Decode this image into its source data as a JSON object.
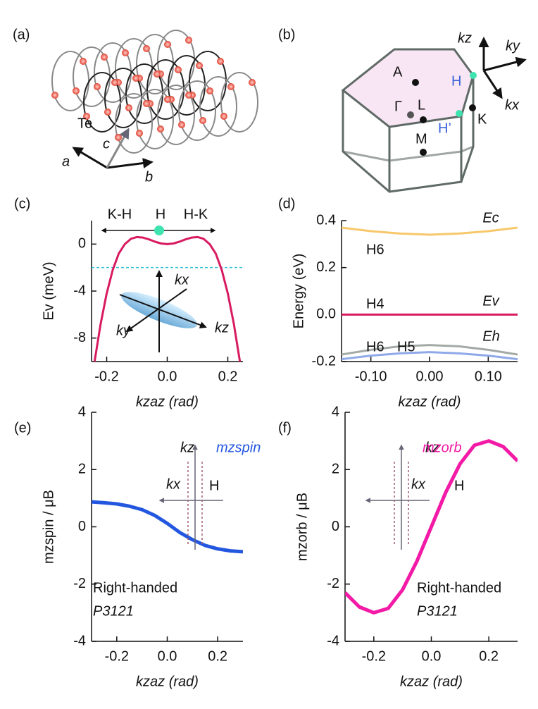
{
  "diagrams": {
    "a": {
      "panel_label": "(a)",
      "atom": "Te",
      "axes": [
        "a",
        "b",
        "c"
      ]
    },
    "b": {
      "panel_label": "(b)",
      "points": [
        "A",
        "Γ",
        "L",
        "M",
        "H",
        "H’",
        "K"
      ],
      "axes": [
        "kz",
        "ky",
        "kx"
      ]
    }
  },
  "chart_data": [
    {
      "type": "line",
      "panel_label": "(c)",
      "x_label": "kzaz (rad)",
      "y_label": "Ev (meV)",
      "x": [
        -0.24,
        -0.22,
        -0.2,
        -0.18,
        -0.16,
        -0.14,
        -0.12,
        -0.1,
        -0.08,
        -0.06,
        -0.04,
        -0.02,
        0,
        0.02,
        0.04,
        0.06,
        0.08,
        0.1,
        0.12,
        0.14,
        0.16,
        0.18,
        0.2,
        0.22,
        0.24
      ],
      "series": [
        {
          "color": "#d81b60",
          "values": [
            -10,
            -6.8,
            -4.2,
            -2.2,
            -0.8,
            0,
            0.45,
            0.6,
            0.55,
            0.4,
            0.2,
            0.05,
            0,
            0.05,
            0.2,
            0.4,
            0.55,
            0.6,
            0.45,
            0,
            -0.8,
            -2.2,
            -4.2,
            -6.8,
            -10
          ]
        }
      ],
      "reference_line": -2,
      "reference_color": "#33c3d8",
      "xlim": [
        -0.25,
        0.25
      ],
      "xticks": [
        -0.2,
        {
          "value": 0,
          "label": "0.0"
        },
        0.2
      ],
      "ylim": [
        -10,
        2
      ],
      "yticks": [
        0,
        -4,
        -8
      ],
      "annotations": [
        "K-H",
        "H",
        "H-K",
        "kx",
        "ky",
        "kz"
      ]
    },
    {
      "type": "line",
      "panel_label": "(d)",
      "x_label": "kzaz (rad)",
      "y_label": "Energy (eV)",
      "x": [
        -0.15,
        -0.1,
        -0.05,
        0,
        0.05,
        0.1,
        0.15
      ],
      "series": [
        {
          "name": "Ec",
          "color": "#f7c86b",
          "values": [
            0.37,
            0.355,
            0.345,
            0.34,
            0.345,
            0.355,
            0.37
          ]
        },
        {
          "name": "Ev",
          "color": "#d81b60",
          "values": [
            0,
            0,
            0,
            0,
            0,
            0,
            0
          ]
        },
        {
          "name": "Eh",
          "color": "#a3aaa6",
          "values": [
            -0.17,
            -0.15,
            -0.135,
            -0.13,
            -0.135,
            -0.15,
            -0.17
          ]
        },
        {
          "color": "#8fa9e8",
          "values": [
            -0.19,
            -0.175,
            -0.165,
            -0.16,
            -0.165,
            -0.175,
            -0.19
          ]
        }
      ],
      "xlim": [
        -0.15,
        0.15
      ],
      "xticks": [
        {
          "value": -0.1,
          "label": "-0.10"
        },
        {
          "value": 0,
          "label": "0.00"
        },
        {
          "value": 0.1,
          "label": "0.10"
        }
      ],
      "ylim": [
        -0.2,
        0.4
      ],
      "yticks": [
        0.4,
        0.2,
        {
          "value": 0,
          "label": "0.0"
        },
        -0.2
      ],
      "annotations": [
        "H6",
        "H4",
        "H6",
        "H5"
      ]
    },
    {
      "type": "line",
      "panel_label": "(e)",
      "x_label": "kzaz (rad)",
      "y_label": "mzspin / μB",
      "x": [
        -0.3,
        -0.25,
        -0.2,
        -0.15,
        -0.1,
        -0.05,
        0,
        0.05,
        0.1,
        0.15,
        0.2,
        0.25,
        0.3
      ],
      "series": [
        {
          "name": "mzspin",
          "color": "#2457e0",
          "values": [
            0.87,
            0.84,
            0.8,
            0.72,
            0.6,
            0.4,
            0.12,
            -0.2,
            -0.45,
            -0.65,
            -0.77,
            -0.84,
            -0.87
          ]
        }
      ],
      "xlim": [
        -0.3,
        0.3
      ],
      "xticks": [
        -0.2,
        {
          "value": 0,
          "label": "0.0"
        },
        0.2
      ],
      "ylim": [
        -4,
        4
      ],
      "yticks": [
        4,
        2,
        0,
        -2,
        -4
      ],
      "annotations": [
        "kz",
        "kx",
        "H",
        "Right-handed",
        "P3121"
      ]
    },
    {
      "type": "line",
      "panel_label": "(f)",
      "x_label": "kzaz (rad)",
      "y_label": "mzorb / μB",
      "x": [
        -0.3,
        -0.25,
        -0.2,
        -0.15,
        -0.1,
        -0.05,
        0,
        0.05,
        0.1,
        0.15,
        0.2,
        0.25,
        0.3
      ],
      "series": [
        {
          "name": "mzorb",
          "color": "#f21aa6",
          "values": [
            -2.3,
            -2.8,
            -3,
            -2.85,
            -2.2,
            -1.2,
            0,
            1.2,
            2.2,
            2.85,
            3,
            2.8,
            2.3
          ]
        }
      ],
      "xlim": [
        -0.3,
        0.3
      ],
      "xticks": [
        -0.2,
        {
          "value": 0,
          "label": "0.0"
        },
        0.2
      ],
      "ylim": [
        -4,
        4
      ],
      "yticks": [
        4,
        2,
        0,
        -2,
        -4
      ],
      "annotations": [
        "kz",
        "kx",
        "H",
        "Right-handed",
        "P3121"
      ]
    }
  ]
}
